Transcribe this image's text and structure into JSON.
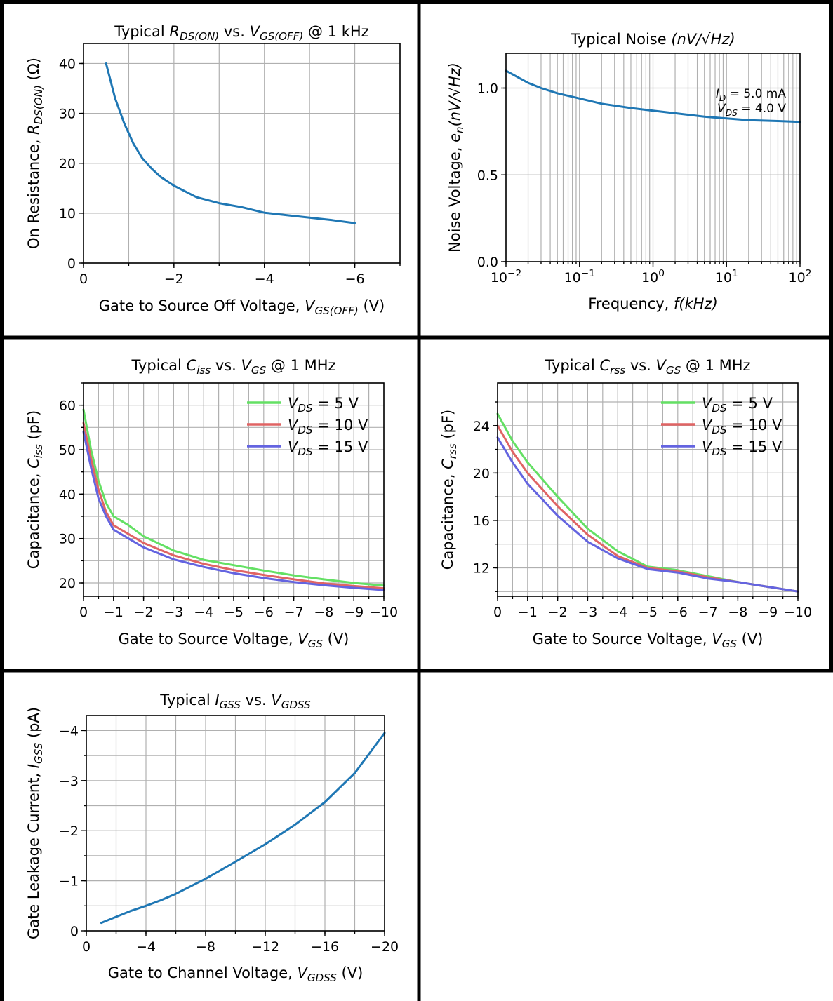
{
  "chart_data": [
    {
      "id": "rdson",
      "type": "line",
      "title": [
        {
          "t": "Typical "
        },
        {
          "t": "R",
          "i": 1
        },
        {
          "t": "DS(ON)",
          "i": 1,
          "s": 1
        },
        {
          "t": " vs. "
        },
        {
          "t": "V",
          "i": 1
        },
        {
          "t": "GS(OFF)",
          "i": 1,
          "s": 1
        },
        {
          "t": " @ 1 kHz"
        }
      ],
      "xlabel": [
        {
          "t": "Gate to Source Off Voltage, "
        },
        {
          "t": "V",
          "i": 1
        },
        {
          "t": "GS(OFF)",
          "i": 1,
          "s": 1
        },
        {
          "t": " (V)"
        }
      ],
      "ylabel": [
        {
          "t": "On Resistance, "
        },
        {
          "t": "R",
          "i": 1
        },
        {
          "t": "DS(ON)",
          "i": 1,
          "s": 1
        },
        {
          "t": " (Ω)"
        }
      ],
      "xlim": [
        0,
        -7
      ],
      "ylim": [
        0,
        44
      ],
      "xscale": "linear",
      "xticks": [
        0,
        -2,
        -4,
        -6
      ],
      "xtick_labels": [
        "0",
        "−2",
        "−4",
        "−6"
      ],
      "yticks": [
        0,
        10,
        20,
        30,
        40
      ],
      "ytick_labels": [
        "0",
        "10",
        "20",
        "30",
        "40"
      ],
      "xgrid": [
        0,
        -1,
        -2,
        -3,
        -4,
        -5,
        -6,
        -7
      ],
      "ygrid": [
        0,
        10,
        20,
        30,
        40
      ],
      "grid": true,
      "series": [
        {
          "color": "#1f77b4",
          "x": [
            -0.5,
            -0.7,
            -0.9,
            -1.1,
            -1.3,
            -1.5,
            -1.7,
            -2.0,
            -2.5,
            -3.0,
            -3.5,
            -4.0,
            -4.5,
            -5.0,
            -5.5,
            -6.0
          ],
          "y": [
            40,
            33,
            28,
            24,
            21,
            19,
            17.3,
            15.5,
            13.2,
            12.0,
            11.2,
            10.1,
            9.6,
            9.1,
            8.6,
            8.0
          ]
        }
      ]
    },
    {
      "id": "noise",
      "type": "line",
      "title": [
        {
          "t": "Typical Noise "
        },
        {
          "t": "(nV/√Hz)",
          "i": 1
        }
      ],
      "xlabel": [
        {
          "t": "Frequency, "
        },
        {
          "t": "f(kHz)",
          "i": 1
        }
      ],
      "ylabel": [
        {
          "t": "Noise Voltage, "
        },
        {
          "t": "e",
          "i": 1
        },
        {
          "t": "n",
          "i": 1,
          "s": 1
        },
        {
          "t": "(nV/√Hz)",
          "i": 1
        }
      ],
      "xlim": [
        0.01,
        100
      ],
      "ylim": [
        0,
        1.2
      ],
      "xscale": "log",
      "xticks": [
        0.01,
        0.1,
        1,
        10,
        100
      ],
      "xtick_labels": [
        [
          {
            "t": "10"
          },
          {
            "t": "−2",
            "p": 1
          }
        ],
        [
          {
            "t": "10"
          },
          {
            "t": "−1",
            "p": 1
          }
        ],
        [
          {
            "t": "10"
          },
          {
            "t": "0",
            "p": 1
          }
        ],
        [
          {
            "t": "10"
          },
          {
            "t": "1",
            "p": 1
          }
        ],
        [
          {
            "t": "10"
          },
          {
            "t": "2",
            "p": 1
          }
        ]
      ],
      "yticks": [
        0,
        0.5,
        1.0
      ],
      "ytick_labels": [
        "0.0",
        "0.5",
        "1.0"
      ],
      "ygrid": [
        0,
        0.5,
        1.0
      ],
      "grid": true,
      "annotations": [
        [
          {
            "t": "I",
            "i": 1
          },
          {
            "t": "D",
            "i": 1,
            "s": 1
          },
          {
            "t": " = 5.0 mA"
          }
        ],
        [
          {
            "t": "V",
            "i": 1
          },
          {
            "t": "DS",
            "i": 1,
            "s": 1
          },
          {
            "t": " = 4.0 V"
          }
        ]
      ],
      "series": [
        {
          "color": "#1f77b4",
          "x": [
            0.01,
            0.02,
            0.03,
            0.05,
            0.1,
            0.2,
            0.5,
            1,
            2,
            5,
            10,
            20,
            50,
            100
          ],
          "y": [
            1.1,
            1.03,
            1.0,
            0.97,
            0.94,
            0.91,
            0.885,
            0.87,
            0.855,
            0.835,
            0.825,
            0.815,
            0.81,
            0.805
          ]
        }
      ]
    },
    {
      "id": "ciss",
      "type": "line",
      "title": [
        {
          "t": "Typical "
        },
        {
          "t": "C",
          "i": 1
        },
        {
          "t": "iss",
          "i": 1,
          "s": 1
        },
        {
          "t": " vs. "
        },
        {
          "t": "V",
          "i": 1
        },
        {
          "t": "GS",
          "i": 1,
          "s": 1
        },
        {
          "t": " @ 1 MHz"
        }
      ],
      "xlabel": [
        {
          "t": "Gate to Source Voltage, "
        },
        {
          "t": "V",
          "i": 1
        },
        {
          "t": "GS",
          "i": 1,
          "s": 1
        },
        {
          "t": " (V)"
        }
      ],
      "ylabel": [
        {
          "t": "Capacitance, "
        },
        {
          "t": "C",
          "i": 1
        },
        {
          "t": "iss",
          "i": 1,
          "s": 1
        },
        {
          "t": " (pF)"
        }
      ],
      "xlim": [
        0,
        -10
      ],
      "ylim": [
        17,
        65
      ],
      "xscale": "linear",
      "xticks": [
        0,
        -1,
        -2,
        -3,
        -4,
        -5,
        -6,
        -7,
        -8,
        -9,
        -10
      ],
      "xtick_labels": [
        "0",
        "−1",
        "−2",
        "−3",
        "−4",
        "−5",
        "−6",
        "−7",
        "−8",
        "−9",
        "−10"
      ],
      "xgrid": [
        0,
        -0.5,
        -1,
        -1.5,
        -2,
        -2.5,
        -3,
        -3.5,
        -4,
        -4.5,
        -5,
        -5.5,
        -6,
        -6.5,
        -7,
        -7.5,
        -8,
        -8.5,
        -9,
        -9.5,
        -10
      ],
      "yticks": [
        20,
        30,
        40,
        50,
        60
      ],
      "ytick_labels": [
        "20",
        "30",
        "40",
        "50",
        "60"
      ],
      "ygrid": [
        20,
        25,
        30,
        35,
        40,
        45,
        50,
        55,
        60,
        65
      ],
      "grid": true,
      "legend": "top-right",
      "series": [
        {
          "name": [
            {
              "t": "V",
              "i": 1
            },
            {
              "t": "DS",
              "i": 1,
              "s": 1
            },
            {
              "t": " = 5 V"
            }
          ],
          "color": "#64e064",
          "x": [
            0,
            -0.25,
            -0.5,
            -0.75,
            -1,
            -1.5,
            -2,
            -3,
            -4,
            -5,
            -6,
            -7,
            -8,
            -9,
            -10
          ],
          "y": [
            59,
            50,
            43,
            38,
            35,
            33,
            30.5,
            27.3,
            25.2,
            24.0,
            22.8,
            21.7,
            20.8,
            20.0,
            19.4
          ]
        },
        {
          "name": [
            {
              "t": "V",
              "i": 1
            },
            {
              "t": "DS",
              "i": 1,
              "s": 1
            },
            {
              "t": " = 10 V"
            }
          ],
          "color": "#e06464",
          "x": [
            0,
            -0.25,
            -0.5,
            -0.75,
            -1,
            -1.5,
            -2,
            -3,
            -4,
            -5,
            -6,
            -7,
            -8,
            -9,
            -10
          ],
          "y": [
            56,
            48,
            41,
            36,
            33,
            31,
            29,
            26.2,
            24.3,
            22.9,
            21.8,
            20.8,
            19.9,
            19.3,
            18.8
          ]
        },
        {
          "name": [
            {
              "t": "V",
              "i": 1
            },
            {
              "t": "DS",
              "i": 1,
              "s": 1
            },
            {
              "t": " = 15 V"
            }
          ],
          "color": "#6464e0",
          "x": [
            0,
            -0.25,
            -0.5,
            -0.75,
            -1,
            -1.5,
            -2,
            -3,
            -4,
            -5,
            -6,
            -7,
            -8,
            -9,
            -10
          ],
          "y": [
            54,
            46,
            39,
            35,
            32,
            30,
            28,
            25.3,
            23.6,
            22.2,
            21.1,
            20.2,
            19.5,
            18.9,
            18.4
          ]
        }
      ]
    },
    {
      "id": "crss",
      "type": "line",
      "title": [
        {
          "t": "Typical "
        },
        {
          "t": "C",
          "i": 1
        },
        {
          "t": "rss",
          "i": 1,
          "s": 1
        },
        {
          "t": " vs. "
        },
        {
          "t": "V",
          "i": 1
        },
        {
          "t": "GS",
          "i": 1,
          "s": 1
        },
        {
          "t": " @ 1 MHz"
        }
      ],
      "xlabel": [
        {
          "t": "Gate to Source Voltage, "
        },
        {
          "t": "V",
          "i": 1
        },
        {
          "t": "GS",
          "i": 1,
          "s": 1
        },
        {
          "t": " (V)"
        }
      ],
      "ylabel": [
        {
          "t": "Capacitance, "
        },
        {
          "t": "C",
          "i": 1
        },
        {
          "t": "rss",
          "i": 1,
          "s": 1
        },
        {
          "t": " (pF)"
        }
      ],
      "xlim": [
        0,
        -10
      ],
      "ylim": [
        9.6,
        27.6
      ],
      "xscale": "linear",
      "xticks": [
        0,
        -1,
        -2,
        -3,
        -4,
        -5,
        -6,
        -7,
        -8,
        -9,
        -10
      ],
      "xtick_labels": [
        "0",
        "−1",
        "−2",
        "−3",
        "−4",
        "−5",
        "−6",
        "−7",
        "−8",
        "−9",
        "−10"
      ],
      "xgrid": [
        0,
        -0.5,
        -1,
        -1.5,
        -2,
        -2.5,
        -3,
        -3.5,
        -4,
        -4.5,
        -5,
        -5.5,
        -6,
        -6.5,
        -7,
        -7.5,
        -8,
        -8.5,
        -9,
        -9.5,
        -10
      ],
      "yticks": [
        12,
        16,
        20,
        24
      ],
      "ytick_labels": [
        "12",
        "16",
        "20",
        "24"
      ],
      "ygrid": [
        10,
        12,
        14,
        16,
        18,
        20,
        22,
        24,
        26
      ],
      "grid": true,
      "legend": "top-right",
      "series": [
        {
          "name": [
            {
              "t": "V",
              "i": 1
            },
            {
              "t": "DS",
              "i": 1,
              "s": 1
            },
            {
              "t": " = 5 V"
            }
          ],
          "color": "#64e064",
          "x": [
            0,
            -0.5,
            -1,
            -2,
            -3,
            -4,
            -5,
            -6,
            -7,
            -8,
            -9,
            -10
          ],
          "y": [
            25,
            22.7,
            20.9,
            18.0,
            15.3,
            13.4,
            12.1,
            11.8,
            11.3,
            10.8,
            10.4,
            10.0
          ]
        },
        {
          "name": [
            {
              "t": "V",
              "i": 1
            },
            {
              "t": "DS",
              "i": 1,
              "s": 1
            },
            {
              "t": " = 10 V"
            }
          ],
          "color": "#e06464",
          "x": [
            0,
            -0.5,
            -1,
            -2,
            -3,
            -4,
            -5,
            -6,
            -7,
            -8,
            -9,
            -10
          ],
          "y": [
            24,
            21.8,
            20.0,
            17.2,
            14.8,
            13.0,
            12.0,
            11.7,
            11.2,
            10.8,
            10.4,
            10.0
          ]
        },
        {
          "name": [
            {
              "t": "V",
              "i": 1
            },
            {
              "t": "DS",
              "i": 1,
              "s": 1
            },
            {
              "t": " = 15 V"
            }
          ],
          "color": "#6464e0",
          "x": [
            0,
            -0.5,
            -1,
            -2,
            -3,
            -4,
            -5,
            -6,
            -7,
            -8,
            -9,
            -10
          ],
          "y": [
            23,
            20.9,
            19.1,
            16.4,
            14.2,
            12.8,
            11.9,
            11.6,
            11.1,
            10.8,
            10.4,
            10.0
          ]
        }
      ]
    },
    {
      "id": "igss",
      "type": "line",
      "title": [
        {
          "t": "Typical "
        },
        {
          "t": "I",
          "i": 1
        },
        {
          "t": "GSS",
          "i": 1,
          "s": 1
        },
        {
          "t": " vs. "
        },
        {
          "t": "V",
          "i": 1
        },
        {
          "t": "GDSS",
          "i": 1,
          "s": 1
        }
      ],
      "xlabel": [
        {
          "t": "Gate to Channel Voltage, "
        },
        {
          "t": "V",
          "i": 1
        },
        {
          "t": "GDSS",
          "i": 1,
          "s": 1
        },
        {
          "t": " (V)"
        }
      ],
      "ylabel": [
        {
          "t": "Gate Leakage Current, "
        },
        {
          "t": "I",
          "i": 1
        },
        {
          "t": "GSS",
          "i": 1,
          "s": 1
        },
        {
          "t": " (pA)"
        }
      ],
      "xlim": [
        0,
        -20
      ],
      "ylim": [
        0,
        -4.3
      ],
      "xscale": "linear",
      "xticks": [
        0,
        -4,
        -8,
        -12,
        -16,
        -20
      ],
      "xtick_labels": [
        "0",
        "−4",
        "−8",
        "−12",
        "−16",
        "−20"
      ],
      "xgrid": [
        0,
        -2,
        -4,
        -6,
        -8,
        -10,
        -12,
        -14,
        -16,
        -18,
        -20
      ],
      "yticks": [
        0,
        -1,
        -2,
        -3,
        -4
      ],
      "ytick_labels": [
        "0",
        "−1",
        "−2",
        "−3",
        "−4"
      ],
      "ygrid": [
        0,
        -0.5,
        -1,
        -1.5,
        -2,
        -2.5,
        -3,
        -3.5,
        -4
      ],
      "grid": true,
      "series": [
        {
          "color": "#1f77b4",
          "x": [
            -1,
            -2,
            -3,
            -4,
            -5,
            -6,
            -8,
            -10,
            -12,
            -14,
            -16,
            -18,
            -20
          ],
          "y": [
            -0.16,
            -0.28,
            -0.4,
            -0.5,
            -0.61,
            -0.74,
            -1.04,
            -1.38,
            -1.73,
            -2.12,
            -2.57,
            -3.15,
            -3.95
          ]
        }
      ]
    }
  ]
}
